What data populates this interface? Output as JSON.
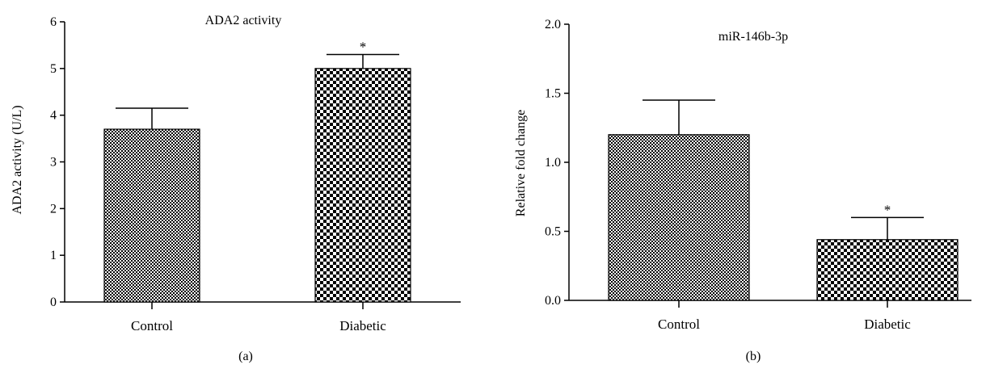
{
  "chart_data": [
    {
      "type": "bar",
      "panel_label": "(a)",
      "title": "ADA2 activity",
      "xlabel": "",
      "ylabel": "ADA2 activity (U/L)",
      "categories": [
        "Control",
        "Diabetic"
      ],
      "values": [
        3.7,
        5.0
      ],
      "errors": [
        0.45,
        0.3
      ],
      "annotations": [
        "",
        "*"
      ],
      "ylim": [
        0,
        6
      ],
      "yticks": [
        "0",
        "1",
        "2",
        "3",
        "4",
        "5",
        "6"
      ],
      "grid": false,
      "colors": {
        "bar": "#000000",
        "background": "#ffffff"
      }
    },
    {
      "type": "bar",
      "panel_label": "(b)",
      "title": "miR-146b-3p",
      "xlabel": "",
      "ylabel": "Relative fold change",
      "categories": [
        "Control",
        "Diabetic"
      ],
      "values": [
        1.2,
        0.44
      ],
      "errors": [
        0.25,
        0.16
      ],
      "annotations": [
        "",
        "*"
      ],
      "ylim": [
        0,
        2.0
      ],
      "yticks": [
        "0.0",
        "0.5",
        "1.0",
        "1.5",
        "2.0"
      ],
      "grid": false,
      "colors": {
        "bar": "#000000",
        "background": "#ffffff"
      }
    }
  ]
}
